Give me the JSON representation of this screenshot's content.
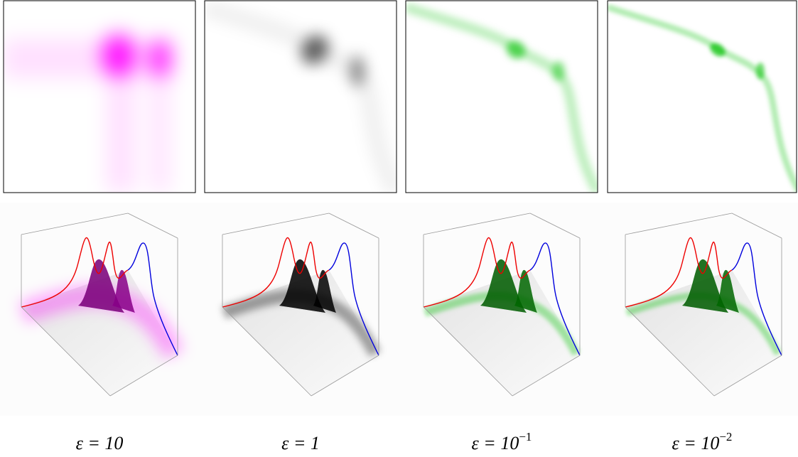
{
  "panels": [
    {
      "label": "ε = 10",
      "color": "#ff00ff"
    },
    {
      "label": "ε = 1",
      "color": "#000000"
    },
    {
      "label": "ε = 10",
      "exponent": "−1",
      "color": "#00c000"
    },
    {
      "label": "ε = 10",
      "exponent": "−2",
      "color": "#00c000"
    }
  ]
}
